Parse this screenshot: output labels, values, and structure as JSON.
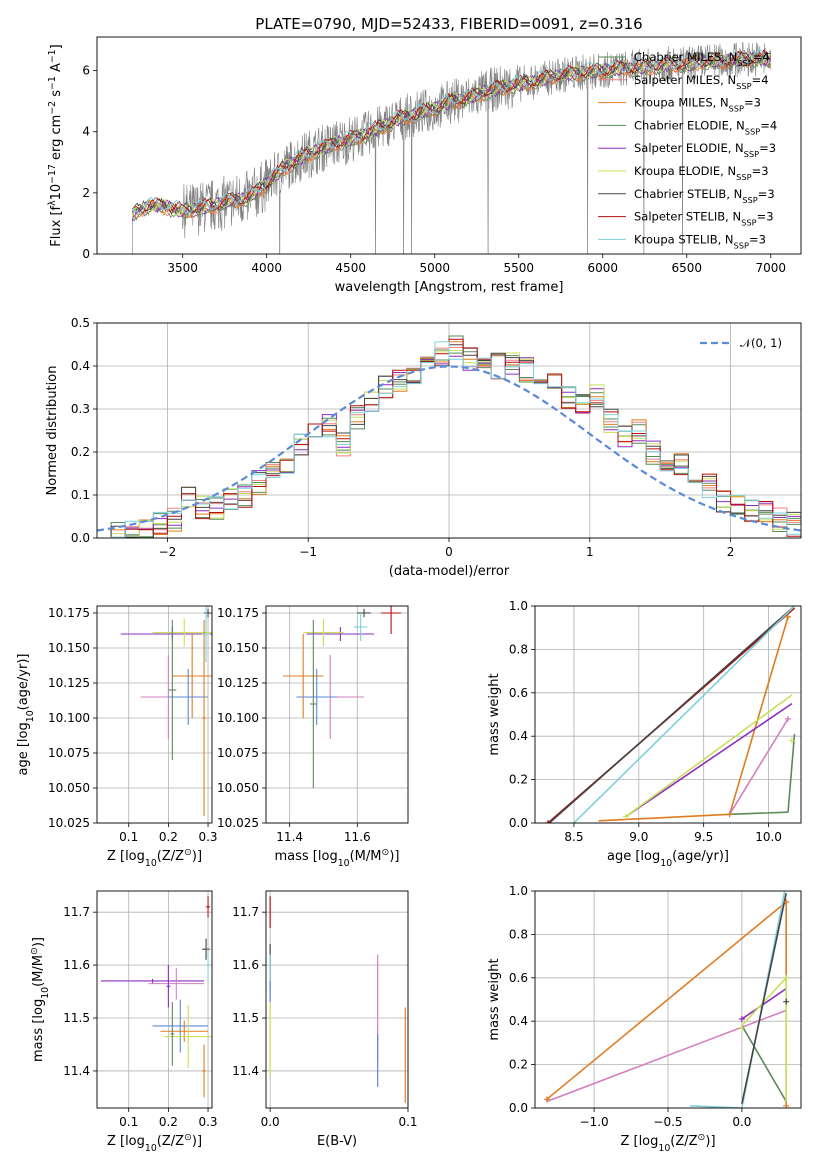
{
  "figure_title": "PLATE=0790, MJD=52433, FIBERID=0091, z=0.316",
  "colors": {
    "gray": "#808080",
    "orange": "#e07b1f",
    "green": "#5a8a5a",
    "purple": "#8e2ebf",
    "lime": "#c8e05a",
    "dark": "#444444",
    "red": "#b50f0f",
    "cyan": "#7fd0dc",
    "pink": "#d37fc0",
    "blue": "#5b8ad6",
    "salmon": "#f08080"
  },
  "chart_data": [
    {
      "type": "line",
      "title": "PLATE=0790, MJD=52433, FIBERID=0091, z=0.316",
      "xlabel": "wavelength [Angstrom, rest frame]",
      "ylabel": "Flux [f_λ 10^-17 erg cm^-2 s^-1 A^-1]",
      "ylabel_parts": [
        "Flux [f",
        "λ",
        "10",
        "−17",
        " erg cm",
        "−2",
        " s",
        "−1",
        " A",
        "−1",
        "]"
      ],
      "xlim": [
        2990,
        7180
      ],
      "ylim": [
        0,
        7.1
      ],
      "xticks": [
        3500,
        4000,
        4500,
        5000,
        5500,
        6000,
        6500,
        7000
      ],
      "yticks": [
        0,
        2,
        4,
        6
      ],
      "grid": false,
      "legend_position": "top-right",
      "legend": [
        "Chabrier MILES, N_SSP=4",
        "Salpeter MILES, N_SSP=4",
        "Kroupa MILES, N_SSP=3",
        "Chabrier ELODIE, N_SSP=4",
        "Salpeter ELODIE, N_SSP=3",
        "Kroupa ELODIE, N_SSP=3",
        "Chabrier STELIB, N_SSP=3",
        "Salpeter STELIB, N_SSP=3",
        "Kroupa STELIB, N_SSP=3"
      ],
      "legend_parts": [
        [
          "Chabrier MILES, N",
          "SSP",
          "=4"
        ],
        [
          "Salpeter MILES, N",
          "SSP",
          "=4"
        ],
        [
          "Kroupa MILES, N",
          "SSP",
          "=3"
        ],
        [
          "Chabrier ELODIE, N",
          "SSP",
          "=4"
        ],
        [
          "Salpeter ELODIE, N",
          "SSP",
          "=3"
        ],
        [
          "Kroupa ELODIE, N",
          "SSP",
          "=3"
        ],
        [
          "Chabrier STELIB, N",
          "SSP",
          "=3"
        ],
        [
          "Salpeter STELIB, N",
          "SSP",
          "=3"
        ],
        [
          "Kroupa STELIB, N",
          "SSP",
          "=3"
        ]
      ],
      "legend_colors": [
        "#5a8a5a",
        "#f08080",
        "#e07b1f",
        "#5a8a5a",
        "#8e2ebf",
        "#c8e05a",
        "#444444",
        "#b50f0f",
        "#7fd0dc"
      ],
      "continuum": {
        "x": [
          3200,
          3300,
          3400,
          3500,
          3600,
          3700,
          3800,
          3900,
          4000,
          4100,
          4200,
          4300,
          4400,
          4500,
          4600,
          4700,
          4800,
          4900,
          5000,
          5100,
          5200,
          5300,
          5400,
          5500,
          5600,
          5700,
          5800,
          5900,
          6000,
          6100,
          6200,
          6300,
          6400,
          6500,
          6600,
          6700,
          6800,
          6900,
          7000
        ],
        "y": [
          1.3,
          1.6,
          1.55,
          1.4,
          1.5,
          1.6,
          1.75,
          1.85,
          2.3,
          2.8,
          3.15,
          3.4,
          3.6,
          3.75,
          3.95,
          4.2,
          4.45,
          4.6,
          4.75,
          5.0,
          5.1,
          5.3,
          5.45,
          5.55,
          5.65,
          5.8,
          5.9,
          5.95,
          6.0,
          6.05,
          6.1,
          6.15,
          6.2,
          6.2,
          6.3,
          6.3,
          6.35,
          6.4,
          6.35
        ]
      }
    },
    {
      "type": "line",
      "xlabel": "(data-model)/error",
      "ylabel": "Normed distribution",
      "xlim": [
        -2.5,
        2.5
      ],
      "ylim": [
        0,
        0.5
      ],
      "xticks": [
        -2,
        -1,
        0,
        1,
        2
      ],
      "yticks": [
        0.0,
        0.1,
        0.2,
        0.3,
        0.4,
        0.5
      ],
      "grid": true,
      "legend_position": "top-right",
      "legend": [
        "N(0,1)"
      ],
      "legend_parts": [
        "𝒩(0, 1)"
      ],
      "series": [
        {
          "x": [
            -2.5,
            -2.4,
            -2.3,
            -2.2,
            -2.1,
            -2.0,
            -1.9,
            -1.8,
            -1.7,
            -1.6,
            -1.5,
            -1.4,
            -1.3,
            -1.2,
            -1.1,
            -1.0,
            -0.9,
            -0.8,
            -0.7,
            -0.6,
            -0.5,
            -0.4,
            -0.3,
            -0.2,
            -0.1,
            0.0,
            0.1,
            0.2,
            0.3,
            0.4,
            0.5,
            0.6,
            0.7,
            0.8,
            0.9,
            1.0,
            1.1,
            1.2,
            1.3,
            1.4,
            1.5,
            1.6,
            1.7,
            1.8,
            1.9,
            2.0,
            2.1,
            2.2,
            2.3,
            2.4
          ],
          "values": [
            0.01,
            0.01,
            0.012,
            0.02,
            0.03,
            0.045,
            0.09,
            0.075,
            0.07,
            0.085,
            0.1,
            0.13,
            0.16,
            0.18,
            0.22,
            0.24,
            0.26,
            0.22,
            0.28,
            0.32,
            0.35,
            0.37,
            0.38,
            0.4,
            0.43,
            0.44,
            0.42,
            0.41,
            0.4,
            0.41,
            0.39,
            0.36,
            0.37,
            0.33,
            0.31,
            0.33,
            0.27,
            0.24,
            0.25,
            0.2,
            0.17,
            0.17,
            0.14,
            0.12,
            0.09,
            0.07,
            0.06,
            0.06,
            0.04,
            0.03
          ]
        },
        {
          "name": "N(0,1)",
          "x": [
            -2.5,
            -2.0,
            -1.5,
            -1.0,
            -0.5,
            0.0,
            0.5,
            1.0,
            1.5,
            2.0,
            2.5
          ],
          "values": [
            0.0175,
            0.054,
            0.1295,
            0.242,
            0.352,
            0.399,
            0.352,
            0.242,
            0.1295,
            0.054,
            0.0175
          ]
        }
      ]
    },
    {
      "type": "scatter",
      "xlabel": "Z [log10(Z/Z⊙)]",
      "xlabel_parts": [
        "Z [log",
        "10",
        "(Z/Z",
        "⊙",
        ")]"
      ],
      "ylabel": "age [log10(age/yr)]",
      "ylabel_parts": [
        "age  [log",
        "10",
        "(age/yr)]"
      ],
      "xlim": [
        0.02,
        0.31
      ],
      "ylim": [
        10.025,
        10.18
      ],
      "xticks": [
        0.1,
        0.2,
        0.3
      ],
      "yticks": [
        10.025,
        10.05,
        10.075,
        10.1,
        10.125,
        10.15,
        10.175
      ],
      "grid": true
    },
    {
      "type": "scatter",
      "xlabel": "mass [log10(M/M⊙)]",
      "xlabel_parts": [
        "mass [log",
        "10",
        "(M/M",
        "⊙",
        ")]"
      ],
      "xlim": [
        11.33,
        11.75
      ],
      "ylim": [
        10.025,
        10.18
      ],
      "xticks": [
        11.4,
        11.6
      ],
      "yticks": [
        10.025,
        10.05,
        10.075,
        10.1,
        10.125,
        10.15,
        10.175
      ],
      "grid": true
    },
    {
      "type": "line",
      "xlabel": "age [log10(age/yr)]",
      "xlabel_parts": [
        "age  [log",
        "10",
        "(age/yr)]"
      ],
      "ylabel": "mass weight",
      "xlim": [
        8.2,
        10.25
      ],
      "ylim": [
        0,
        1
      ],
      "xticks": [
        8.5,
        9.0,
        9.5,
        10.0
      ],
      "yticks": [
        0.0,
        0.2,
        0.4,
        0.6,
        0.8,
        1.0
      ],
      "grid": true
    },
    {
      "type": "scatter",
      "xlabel": "Z [log10(Z/Z⊙)]",
      "xlabel_parts": [
        "Z [log",
        "10",
        "(Z/Z",
        "⊙",
        ")]"
      ],
      "ylabel": "mass [log10(M/M⊙)]",
      "ylabel_parts": [
        "mass [log",
        "10",
        "(M/M",
        "⊙",
        ")]"
      ],
      "xlim": [
        0.02,
        0.31
      ],
      "ylim": [
        11.33,
        11.74
      ],
      "xticks": [
        0.1,
        0.2,
        0.3
      ],
      "yticks": [
        11.4,
        11.5,
        11.6,
        11.7
      ],
      "grid": true
    },
    {
      "type": "scatter",
      "xlabel": "E(B-V)",
      "xlim": [
        -0.003,
        0.1
      ],
      "ylim": [
        11.33,
        11.74
      ],
      "xticks": [
        0.0,
        0.1
      ],
      "yticks": [
        11.4,
        11.5,
        11.6,
        11.7
      ],
      "grid": true
    },
    {
      "type": "line",
      "xlabel": "Z [log10(Z/Z⊙)]",
      "xlabel_parts": [
        "Z [log",
        "10",
        "(Z/Z",
        "⊙",
        ")]"
      ],
      "ylabel": "mass weight",
      "xlim": [
        -1.4,
        0.4
      ],
      "ylim": [
        0,
        1
      ],
      "xticks": [
        -1.0,
        -0.5,
        0.0
      ],
      "yticks": [
        0.0,
        0.2,
        0.4,
        0.6,
        0.8,
        1.0
      ],
      "grid": true
    }
  ]
}
